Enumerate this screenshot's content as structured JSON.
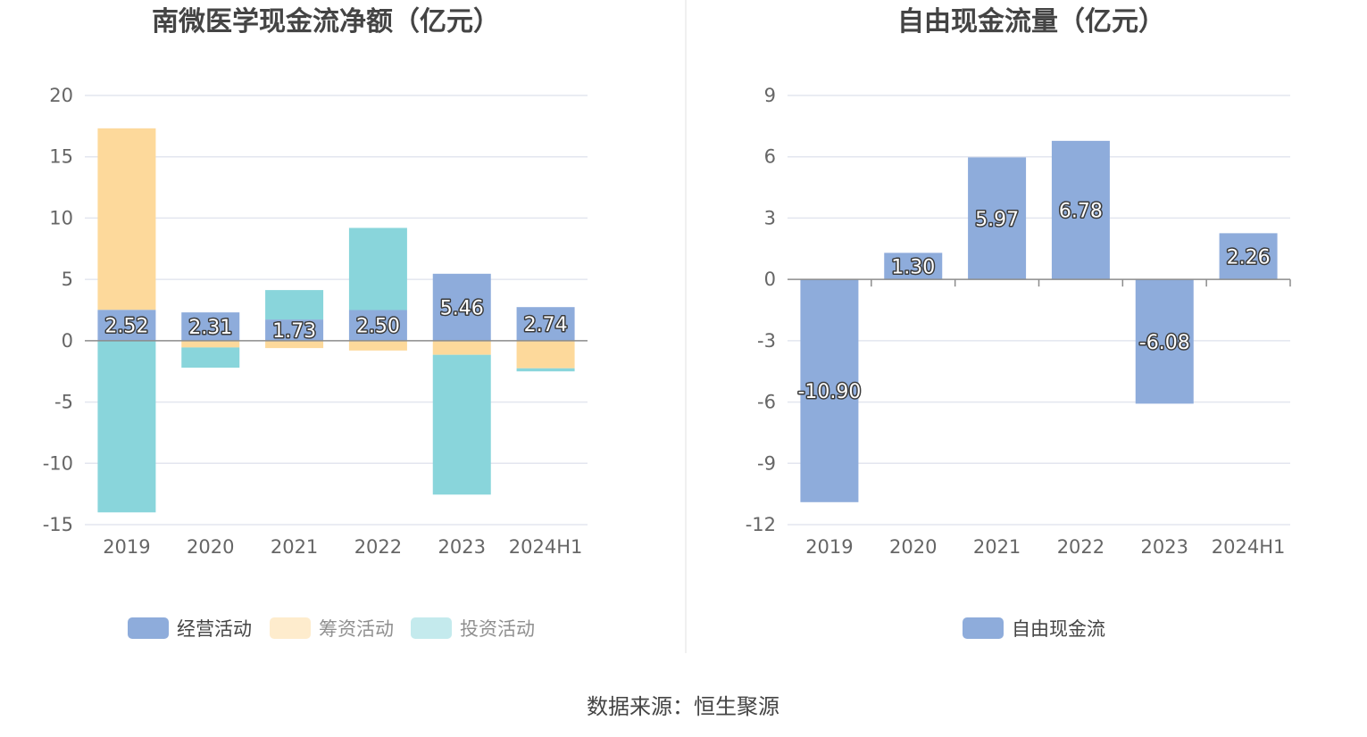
{
  "source_text": "数据来源：恒生聚源",
  "chart_data": [
    {
      "type": "bar",
      "stacked": true,
      "title": "南微医学现金流净额（亿元）",
      "categories": [
        "2019",
        "2020",
        "2021",
        "2022",
        "2023",
        "2024H1"
      ],
      "ylim": [
        -15,
        20
      ],
      "yticks": [
        20,
        15,
        10,
        5,
        0,
        -5,
        -10,
        -15
      ],
      "grid": true,
      "legend_position": "bottom",
      "series": [
        {
          "name": "经营活动",
          "color": "#8eacdb",
          "values": [
            2.52,
            2.31,
            1.73,
            2.5,
            5.46,
            2.74
          ],
          "labels": [
            "2.52",
            "2.31",
            "1.73",
            "2.50",
            "5.46",
            "2.74"
          ]
        },
        {
          "name": "筹资活动",
          "color": "#fdd99b",
          "values": [
            14.8,
            -0.55,
            -0.6,
            -0.8,
            -1.15,
            -2.25
          ]
        },
        {
          "name": "投资活动",
          "color": "#89d5db",
          "values": [
            -14.0,
            -1.65,
            2.4,
            6.7,
            -11.4,
            -0.25
          ]
        }
      ]
    },
    {
      "type": "bar",
      "title": "自由现金流量（亿元）",
      "categories": [
        "2019",
        "2020",
        "2021",
        "2022",
        "2023",
        "2024H1"
      ],
      "ylim": [
        -12,
        9
      ],
      "yticks": [
        9,
        6,
        3,
        0,
        -3,
        -6,
        -9,
        -12
      ],
      "grid": true,
      "legend_position": "bottom",
      "series": [
        {
          "name": "自由现金流",
          "color": "#8eacdb",
          "values": [
            -10.9,
            1.3,
            5.97,
            6.78,
            -6.08,
            2.26
          ],
          "labels": [
            "-10.90",
            "1.30",
            "5.97",
            "6.78",
            "-6.08",
            "2.26"
          ]
        }
      ]
    }
  ]
}
